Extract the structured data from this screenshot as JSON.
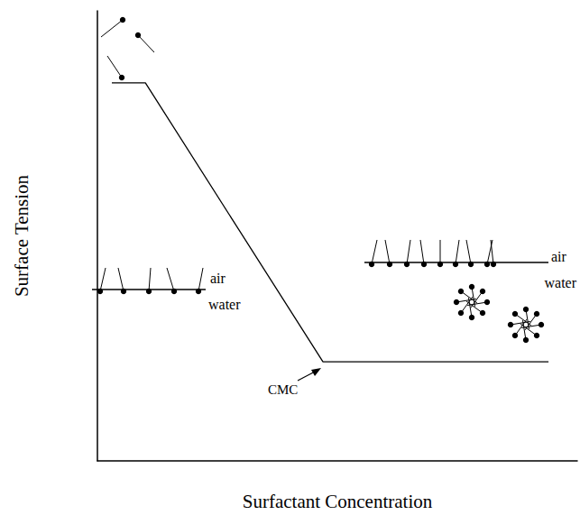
{
  "chart_data": {
    "type": "line",
    "x": [
      3,
      10,
      47,
      94
    ],
    "values": [
      84,
      84,
      22,
      22
    ],
    "color": "#000000",
    "xlim": [
      0,
      100
    ],
    "ylim": [
      0,
      100
    ],
    "xlabel": "Surfactant Concentration",
    "ylabel": "Surface Tension",
    "annotations": [
      "CMC",
      "air",
      "water",
      "air",
      "water"
    ],
    "tick_labels": false,
    "grid": false,
    "marker": "none"
  }
}
